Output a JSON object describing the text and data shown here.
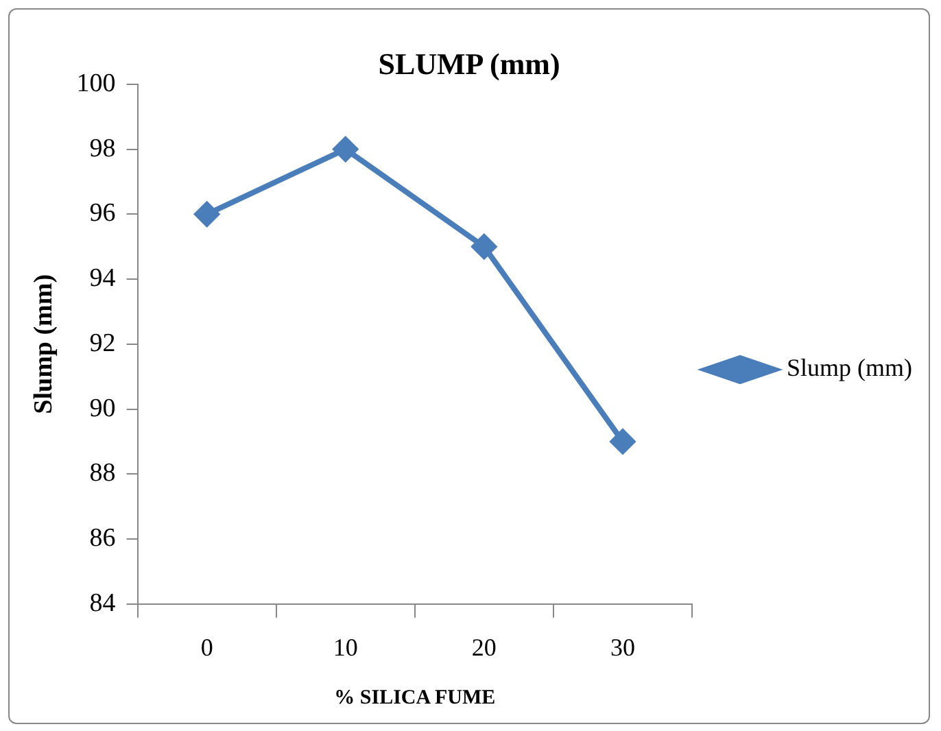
{
  "chart_data": {
    "type": "line",
    "title": "SLUMP (mm)",
    "xlabel": "% SILICA FUME",
    "ylabel": "Slump (mm)",
    "categories": [
      "0",
      "10",
      "20",
      "30"
    ],
    "series": [
      {
        "name": "Slump (mm)",
        "color": "#4a7ebb",
        "values": [
          96,
          98,
          95,
          89
        ]
      }
    ],
    "ylim": [
      84,
      100
    ],
    "yticks": [
      84,
      86,
      88,
      90,
      92,
      94,
      96,
      98,
      100
    ],
    "grid": false,
    "legend": "right",
    "marker": "diamond",
    "line_style": "solid"
  }
}
